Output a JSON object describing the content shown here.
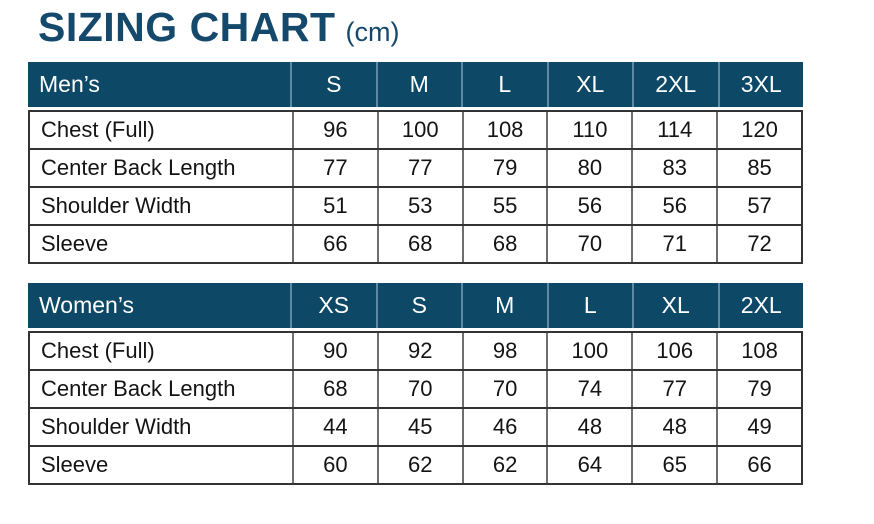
{
  "page": {
    "title": "SIZING CHART",
    "title_unit": "(cm)"
  },
  "colors": {
    "title_text": "#14496b",
    "header_bg": "#0d4967",
    "header_divider": "#5e89a3",
    "header_text": "#ffffff",
    "body_border": "#333333",
    "column_divider": "#6e6e6e",
    "body_text": "#141414",
    "background": "#ffffff"
  },
  "tables": [
    {
      "label_header": "Men’s",
      "size_headers": [
        "S",
        "M",
        "L",
        "XL",
        "2XL",
        "3XL"
      ],
      "rows": [
        {
          "label": "Chest (Full)",
          "values": [
            "96",
            "100",
            "108",
            "110",
            "114",
            "120"
          ]
        },
        {
          "label": "Center Back Length",
          "values": [
            "77",
            "77",
            "79",
            "80",
            "83",
            "85"
          ]
        },
        {
          "label": "Shoulder Width",
          "values": [
            "51",
            "53",
            "55",
            "56",
            "56",
            "57"
          ]
        },
        {
          "label": "Sleeve",
          "values": [
            "66",
            "68",
            "68",
            "70",
            "71",
            "72"
          ]
        }
      ]
    },
    {
      "label_header": "Women’s",
      "size_headers": [
        "XS",
        "S",
        "M",
        "L",
        "XL",
        "2XL"
      ],
      "rows": [
        {
          "label": "Chest (Full)",
          "values": [
            "90",
            "92",
            "98",
            "100",
            "106",
            "108"
          ]
        },
        {
          "label": "Center Back Length",
          "values": [
            "68",
            "70",
            "70",
            "74",
            "77",
            "79"
          ]
        },
        {
          "label": "Shoulder Width",
          "values": [
            "44",
            "45",
            "46",
            "48",
            "48",
            "49"
          ]
        },
        {
          "label": "Sleeve",
          "values": [
            "60",
            "62",
            "62",
            "64",
            "65",
            "66"
          ]
        }
      ]
    }
  ]
}
